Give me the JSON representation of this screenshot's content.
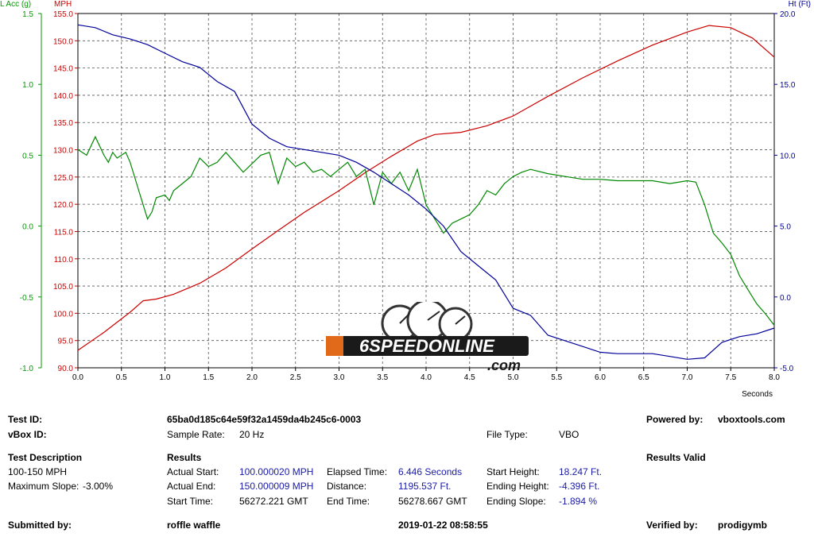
{
  "chart_data": {
    "type": "line",
    "x_axis": {
      "label": "Seconds",
      "range": [
        0,
        8
      ],
      "ticks": [
        "0.0",
        "0.5",
        "1.0",
        "1.5",
        "2.0",
        "2.5",
        "3.0",
        "3.5",
        "4.0",
        "4.5",
        "5.0",
        "5.5",
        "6.0",
        "6.5",
        "7.0",
        "7.5",
        "8.0"
      ]
    },
    "left_axis_outer": {
      "label": "L Acc (g)",
      "color": "#009900",
      "range": [
        -1.0,
        1.5
      ],
      "ticks": [
        "1.5",
        "1.0",
        "0.5",
        "0.0",
        "-0.5",
        "-1.0"
      ]
    },
    "left_axis_inner": {
      "label": "MPH",
      "color": "#cc0000",
      "range": [
        90,
        155
      ],
      "ticks": [
        "155.0",
        "150.0",
        "145.0",
        "140.0",
        "135.0",
        "130.0",
        "125.0",
        "120.0",
        "115.0",
        "110.0",
        "105.0",
        "100.0",
        "95.0",
        "90.0"
      ]
    },
    "right_axis": {
      "label": "Ht (Ft)",
      "color": "#000099",
      "range": [
        -5,
        20
      ],
      "ticks": [
        "20.0",
        "15.0",
        "10.0",
        "5.0",
        "0.0",
        "-5.0"
      ]
    },
    "grid": true,
    "series": [
      {
        "axis": "mph",
        "color": "#cc0000",
        "x": [
          0,
          0.3,
          0.6,
          0.75,
          0.9,
          1.1,
          1.4,
          1.7,
          2.0,
          2.3,
          2.6,
          3.0,
          3.3,
          3.6,
          3.9,
          4.1,
          4.4,
          4.7,
          5.0,
          5.4,
          5.8,
          6.2,
          6.6,
          7.0,
          7.25,
          7.5,
          7.75,
          8.0
        ],
        "values": [
          93.2,
          96.5,
          100.2,
          102.3,
          102.6,
          103.5,
          105.5,
          108.3,
          111.8,
          115.2,
          118.5,
          122.5,
          125.8,
          128.8,
          131.6,
          132.8,
          133.2,
          134.4,
          136.2,
          139.8,
          143.2,
          146.3,
          149.2,
          151.6,
          152.8,
          152.4,
          150.5,
          147.0
        ]
      },
      {
        "axis": "lacc",
        "color": "#008800",
        "x": [
          0,
          0.1,
          0.2,
          0.3,
          0.35,
          0.4,
          0.45,
          0.5,
          0.55,
          0.6,
          0.7,
          0.8,
          0.85,
          0.9,
          1.0,
          1.05,
          1.1,
          1.2,
          1.3,
          1.4,
          1.5,
          1.6,
          1.7,
          1.8,
          1.9,
          2.0,
          2.1,
          2.2,
          2.3,
          2.4,
          2.5,
          2.6,
          2.7,
          2.8,
          2.9,
          3.0,
          3.1,
          3.2,
          3.3,
          3.4,
          3.5,
          3.6,
          3.7,
          3.8,
          3.9,
          4.0,
          4.1,
          4.2,
          4.3,
          4.4,
          4.5,
          4.6,
          4.7,
          4.8,
          4.9,
          5.0,
          5.1,
          5.2,
          5.4,
          5.6,
          5.8,
          6.0,
          6.2,
          6.4,
          6.6,
          6.8,
          7.0,
          7.1,
          7.2,
          7.3,
          7.4,
          7.5,
          7.6,
          7.7,
          7.8,
          7.9,
          8.0
        ],
        "values": [
          0.54,
          0.5,
          0.63,
          0.5,
          0.45,
          0.52,
          0.48,
          0.5,
          0.52,
          0.45,
          0.25,
          0.05,
          0.1,
          0.2,
          0.22,
          0.18,
          0.25,
          0.3,
          0.35,
          0.48,
          0.42,
          0.45,
          0.52,
          0.45,
          0.38,
          0.44,
          0.5,
          0.52,
          0.3,
          0.48,
          0.42,
          0.45,
          0.38,
          0.4,
          0.35,
          0.4,
          0.45,
          0.35,
          0.4,
          0.15,
          0.38,
          0.3,
          0.38,
          0.25,
          0.4,
          0.15,
          0.05,
          -0.05,
          0.02,
          0.05,
          0.08,
          0.15,
          0.25,
          0.22,
          0.3,
          0.35,
          0.38,
          0.4,
          0.37,
          0.35,
          0.33,
          0.33,
          0.32,
          0.32,
          0.32,
          0.3,
          0.32,
          0.31,
          0.15,
          -0.05,
          -0.12,
          -0.2,
          -0.35,
          -0.45,
          -0.55,
          -0.62,
          -0.7
        ]
      },
      {
        "axis": "ht",
        "color": "#000099",
        "x": [
          0,
          0.2,
          0.4,
          0.6,
          0.8,
          1.0,
          1.2,
          1.4,
          1.6,
          1.8,
          2.0,
          2.2,
          2.4,
          2.6,
          2.8,
          3.0,
          3.2,
          3.4,
          3.6,
          3.8,
          4.0,
          4.2,
          4.4,
          4.6,
          4.8,
          5.0,
          5.2,
          5.4,
          5.6,
          5.8,
          6.0,
          6.2,
          6.4,
          6.6,
          6.8,
          7.0,
          7.2,
          7.4,
          7.6,
          7.8,
          8.0
        ],
        "values": [
          19.2,
          19.0,
          18.5,
          18.2,
          17.8,
          17.2,
          16.6,
          16.2,
          15.2,
          14.5,
          12.2,
          11.2,
          10.6,
          10.4,
          10.2,
          10.0,
          9.5,
          8.8,
          8.0,
          7.2,
          6.2,
          5.0,
          3.2,
          2.2,
          1.2,
          -0.8,
          -1.3,
          -2.7,
          -3.1,
          -3.5,
          -3.9,
          -4.0,
          -4.0,
          -4.0,
          -4.2,
          -4.4,
          -4.3,
          -3.2,
          -2.8,
          -2.6,
          -2.2
        ]
      }
    ]
  },
  "logo": {
    "brand": "6SPEEDONLINE",
    "domain": ".com"
  },
  "info": {
    "test_id_label": "Test ID:",
    "test_id_value": "65ba0d185c64e59f32a1459da4b245c6-0003",
    "powered_by_label": "Powered by:",
    "powered_by_value": "vboxtools.com",
    "vbox_id_label": "vBox ID:",
    "sample_rate_label": "Sample Rate:",
    "sample_rate_value": "20 Hz",
    "file_type_label": "File Type:",
    "file_type_value": "VBO",
    "test_desc_label": "Test Description",
    "test_desc_1": "100-150 MPH",
    "max_slope_label": "Maximum Slope:",
    "max_slope_value": "-3.00%",
    "results_label": "Results",
    "results_valid": "Results Valid",
    "actual_start_label": "Actual Start:",
    "actual_start_value": "100.000020 MPH",
    "actual_end_label": "Actual End:",
    "actual_end_value": "150.000009 MPH",
    "start_time_label": "Start Time:",
    "start_time_value": "56272.221 GMT",
    "elapsed_label": "Elapsed Time:",
    "elapsed_value": "6.446 Seconds",
    "distance_label": "Distance:",
    "distance_value": "1195.537 Ft.",
    "end_time_label": "End Time:",
    "end_time_value": "56278.667 GMT",
    "start_height_label": "Start Height:",
    "start_height_value": "18.247 Ft.",
    "end_height_label": "Ending Height:",
    "end_height_value": "-4.396 Ft.",
    "end_slope_label": "Ending Slope:",
    "end_slope_value": "-1.894 %",
    "submitted_label": "Submitted by:",
    "submitted_value": "roffle waffle",
    "date_value": "2019-01-22 08:58:55",
    "verified_label": "Verified by:",
    "verified_value": "prodigymb"
  }
}
